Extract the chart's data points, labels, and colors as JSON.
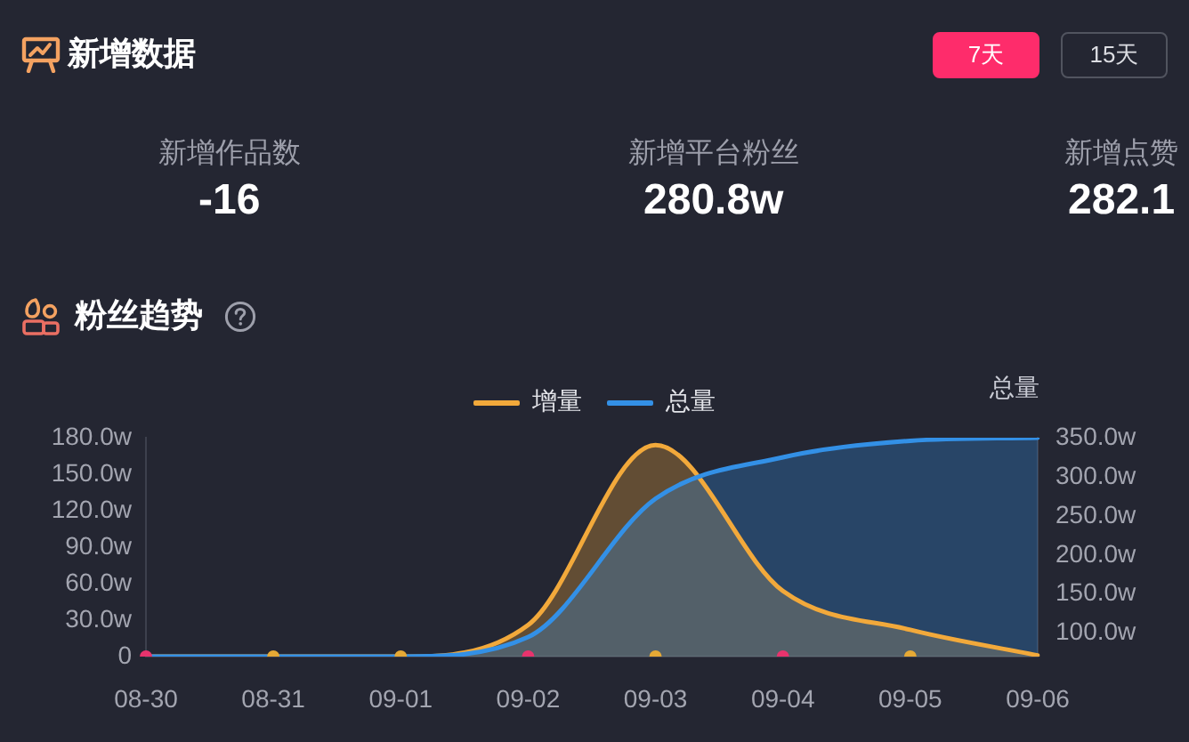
{
  "chart_data": [
    {
      "type": "other",
      "title": "新增数据",
      "annotations": [
        "7天",
        "15天",
        "新增作品数",
        "-16",
        "新增平台粉丝",
        "280.8w",
        "新增点赞",
        "282.1"
      ]
    },
    {
      "type": "area",
      "title": "粉丝趋势",
      "y2label": "总量",
      "categories": [
        "08-30",
        "08-31",
        "09-01",
        "09-02",
        "09-03",
        "09-04",
        "09-05",
        "09-06"
      ],
      "series": [
        {
          "name": "增量",
          "color": "#f2a93b",
          "values": [
            0,
            0,
            0,
            26,
            174,
            54,
            22,
            1
          ]
        },
        {
          "name": "总量",
          "color": "#3390e6",
          "axis": "y2",
          "values": [
            70,
            70,
            70,
            95,
            272,
            325,
            346,
            350
          ]
        },
        {
          "type": "scatter",
          "marker": "circle",
          "colors": [
            "#e8336d",
            "#e6a935",
            "#e6a935",
            "#e8336d",
            "#e6a935",
            "#e8336d",
            "#e6a935",
            null
          ],
          "values": [
            0,
            0,
            0,
            0,
            0,
            0,
            0,
            null
          ]
        }
      ],
      "ylim": [
        0,
        180
      ],
      "yticks": [
        0,
        {
          "value": 30,
          "label": "30.0w"
        },
        {
          "value": 60,
          "label": "60.0w"
        },
        {
          "value": 90,
          "label": "90.0w"
        },
        {
          "value": 120,
          "label": "120.0w"
        },
        {
          "value": 150,
          "label": "150.0w"
        },
        {
          "value": 180,
          "label": "180.0w"
        }
      ],
      "y2lim": [
        70,
        350
      ],
      "y2ticks": [
        {
          "value": 100,
          "label": "100.0w"
        },
        {
          "value": 150,
          "label": "150.0w"
        },
        {
          "value": 200,
          "label": "200.0w"
        },
        {
          "value": 250,
          "label": "250.0w"
        },
        {
          "value": 300,
          "label": "300.0w"
        },
        {
          "value": 350,
          "label": "350.0w"
        }
      ],
      "legend": "top",
      "marker": "none"
    }
  ]
}
